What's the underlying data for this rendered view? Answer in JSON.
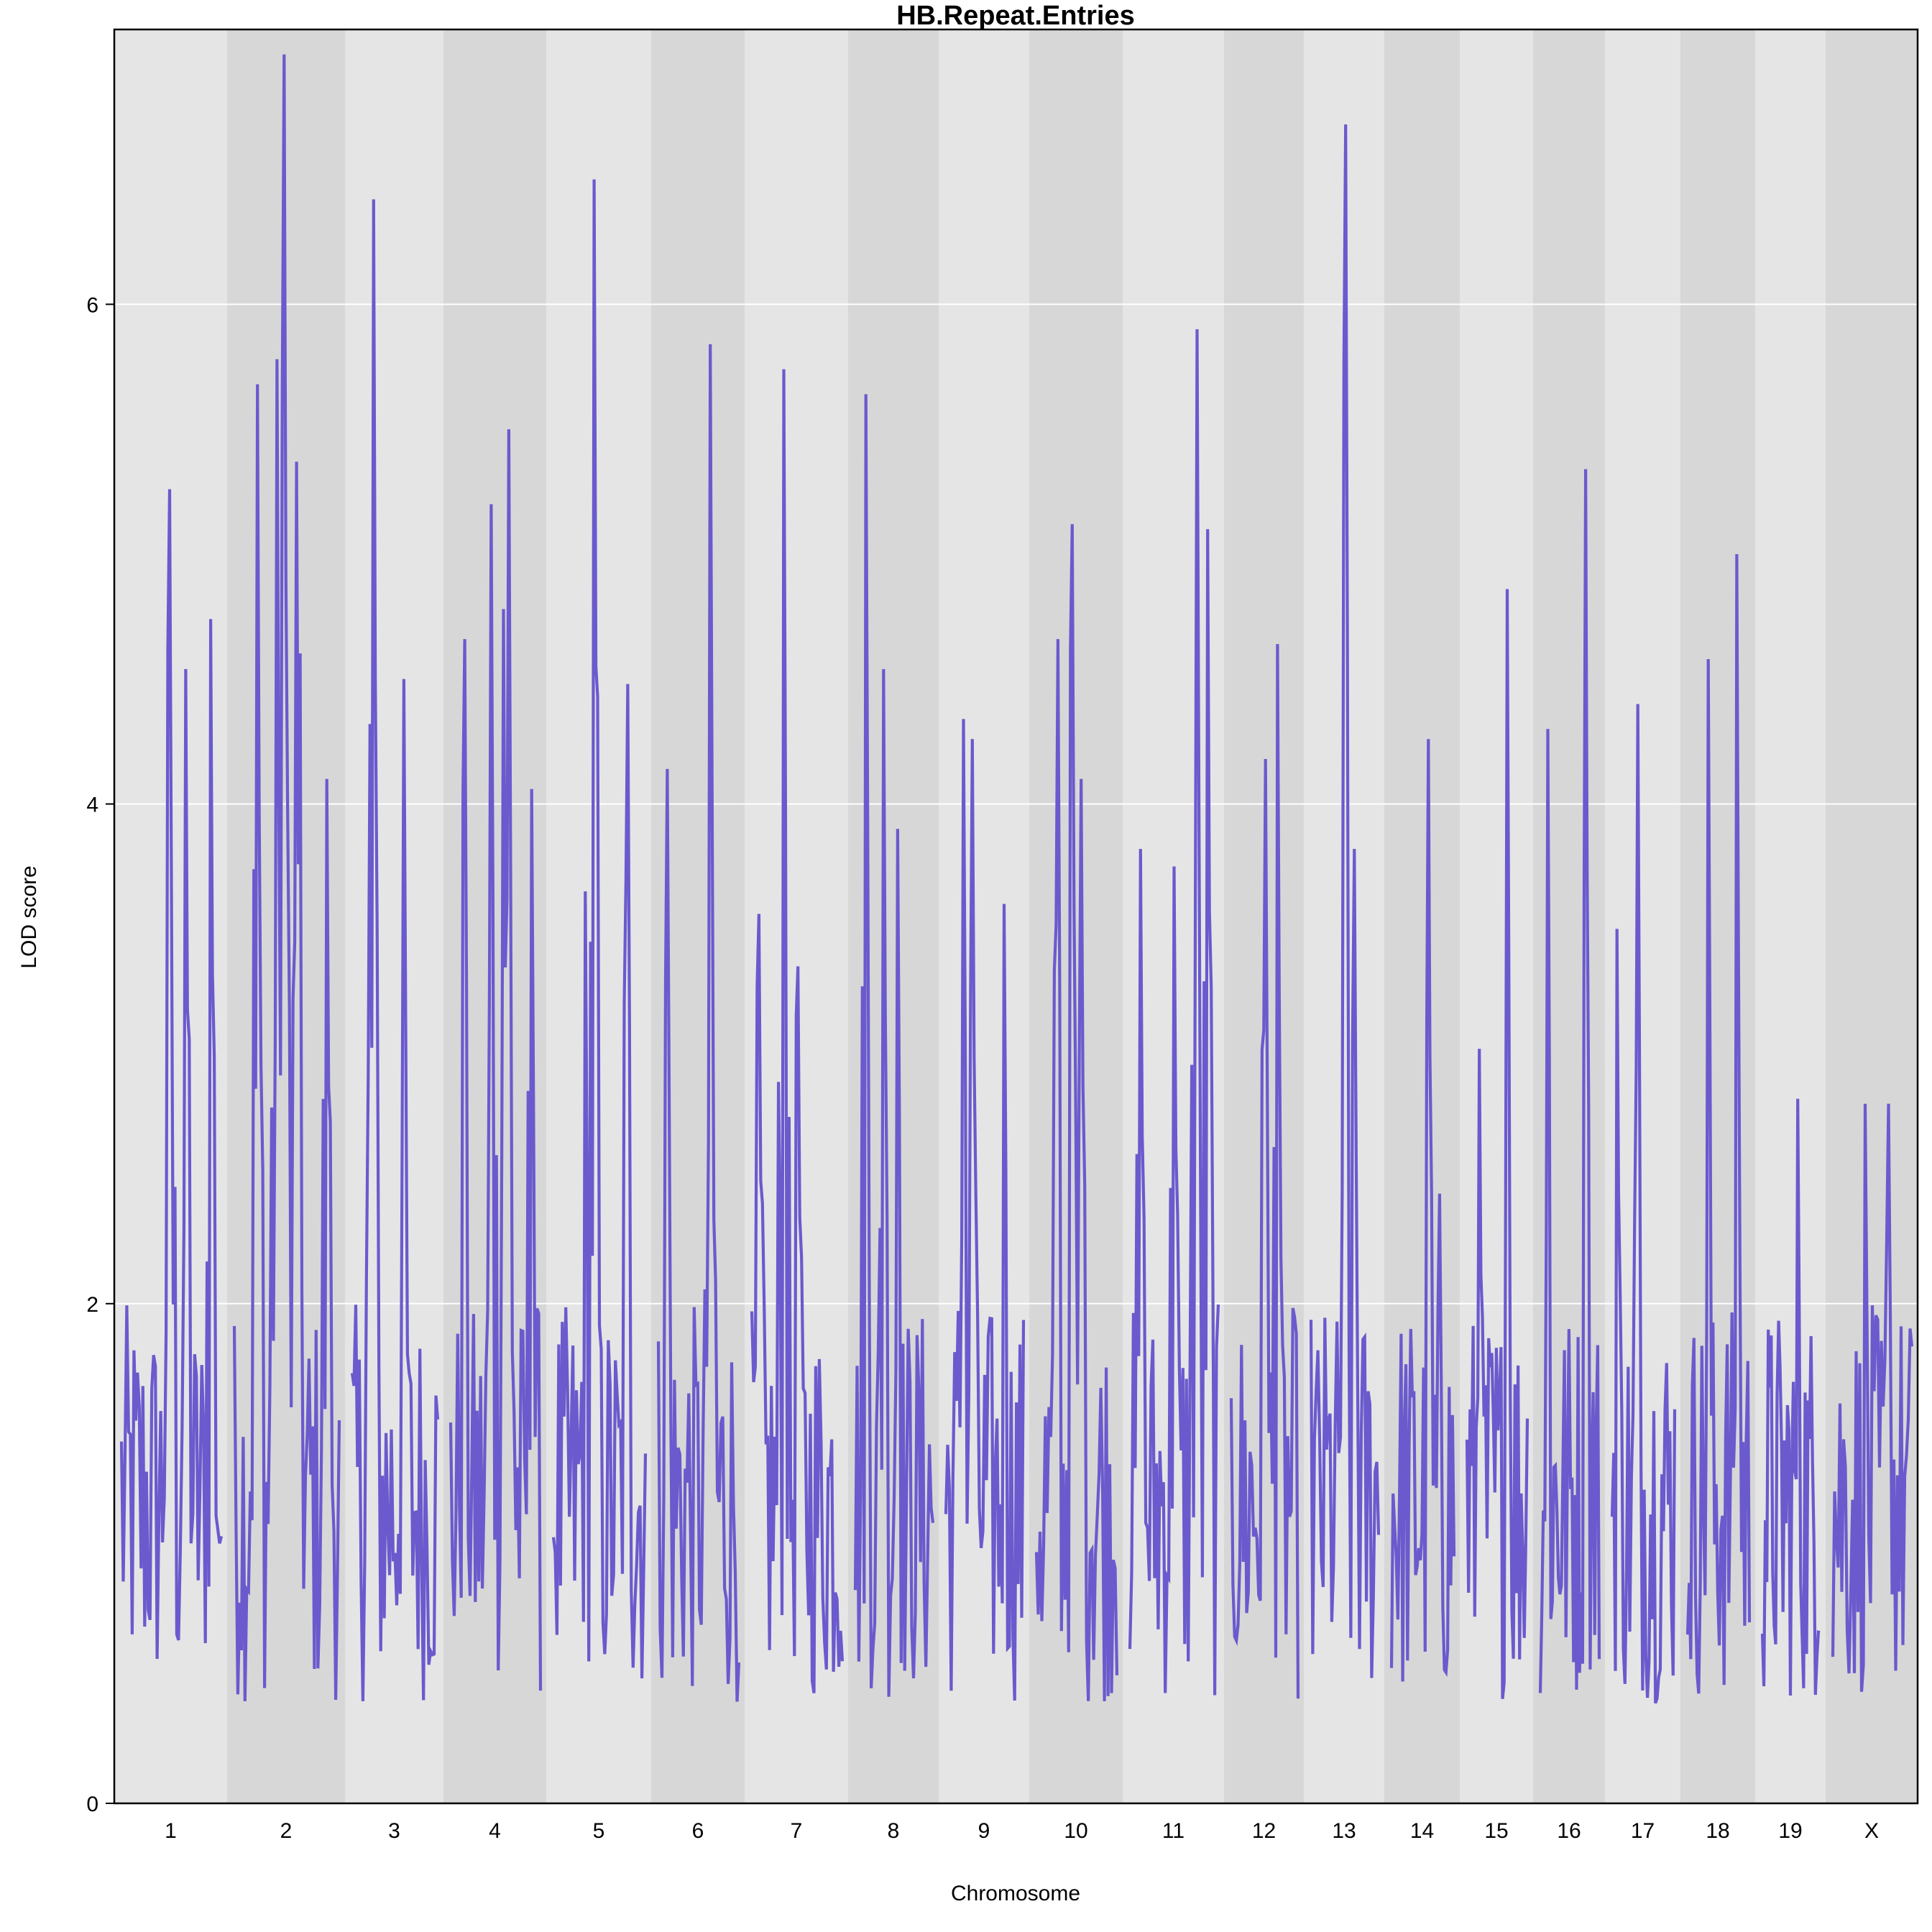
{
  "chart_data": {
    "type": "line",
    "title": "HB.Repeat.Entries",
    "xlabel": "Chromosome",
    "ylabel": "LOD score",
    "ylim": [
      0,
      7.1
    ],
    "yticks": [
      0,
      2,
      4,
      6
    ],
    "grid": true,
    "line_color": "#6A5ACD",
    "band_colors": [
      "#E5E5E5",
      "#D7D7D7"
    ],
    "chromosomes": [
      {
        "name": "1",
        "peaks": [
          [
            0.48,
            5.26
          ],
          [
            0.65,
            4.54
          ],
          [
            0.9,
            4.74
          ]
        ]
      },
      {
        "name": "2",
        "peaks": [
          [
            0.22,
            5.68
          ],
          [
            0.4,
            5.78
          ],
          [
            0.48,
            7.0
          ],
          [
            0.6,
            5.37
          ],
          [
            0.88,
            4.1
          ]
        ]
      },
      {
        "name": "3",
        "peaks": [
          [
            0.2,
            4.32
          ],
          [
            0.24,
            6.42
          ],
          [
            0.6,
            4.5
          ]
        ]
      },
      {
        "name": "4",
        "peaks": [
          [
            0.15,
            4.66
          ],
          [
            0.46,
            5.2
          ],
          [
            0.58,
            4.78
          ],
          [
            0.65,
            5.5
          ],
          [
            0.9,
            4.06
          ]
        ]
      },
      {
        "name": "5",
        "peaks": [
          [
            0.35,
            3.65
          ],
          [
            0.44,
            6.5
          ],
          [
            0.8,
            4.48
          ]
        ]
      },
      {
        "name": "6",
        "peaks": [
          [
            0.1,
            4.14
          ],
          [
            0.65,
            5.84
          ]
        ]
      },
      {
        "name": "7",
        "peaks": [
          [
            0.08,
            3.56
          ],
          [
            0.35,
            5.74
          ],
          [
            0.5,
            3.35
          ]
        ]
      },
      {
        "name": "8",
        "peaks": [
          [
            0.14,
            5.64
          ],
          [
            0.36,
            4.54
          ],
          [
            0.55,
            3.9
          ]
        ]
      },
      {
        "name": "9",
        "peaks": [
          [
            0.22,
            4.34
          ],
          [
            0.34,
            4.26
          ],
          [
            0.76,
            3.6
          ]
        ]
      },
      {
        "name": "10",
        "peaks": [
          [
            0.26,
            4.66
          ],
          [
            0.44,
            5.12
          ],
          [
            0.55,
            4.1
          ]
        ]
      },
      {
        "name": "11",
        "peaks": [
          [
            0.12,
            3.82
          ],
          [
            0.5,
            3.75
          ],
          [
            0.75,
            5.9
          ],
          [
            0.88,
            5.1
          ]
        ]
      },
      {
        "name": "12",
        "peaks": [
          [
            0.5,
            4.18
          ],
          [
            0.68,
            4.64
          ]
        ]
      },
      {
        "name": "13",
        "peaks": [
          [
            0.5,
            6.72
          ],
          [
            0.65,
            3.82
          ]
        ]
      },
      {
        "name": "14",
        "peaks": [
          [
            0.6,
            4.26
          ],
          [
            0.78,
            2.44
          ]
        ]
      },
      {
        "name": "15",
        "peaks": [
          [
            0.2,
            3.02
          ],
          [
            0.66,
            4.86
          ]
        ]
      },
      {
        "name": "16",
        "peaks": [
          [
            0.12,
            4.3
          ],
          [
            0.78,
            5.34
          ]
        ]
      },
      {
        "name": "17",
        "peaks": [
          [
            0.08,
            3.5
          ],
          [
            0.4,
            4.4
          ]
        ]
      },
      {
        "name": "18",
        "peaks": [
          [
            0.34,
            4.58
          ],
          [
            0.8,
            5.0
          ]
        ]
      },
      {
        "name": "19",
        "peaks": [
          [
            0.62,
            2.82
          ]
        ]
      },
      {
        "name": "X",
        "peaks": [
          [
            0.4,
            2.8
          ],
          [
            0.7,
            2.8
          ]
        ]
      }
    ]
  }
}
